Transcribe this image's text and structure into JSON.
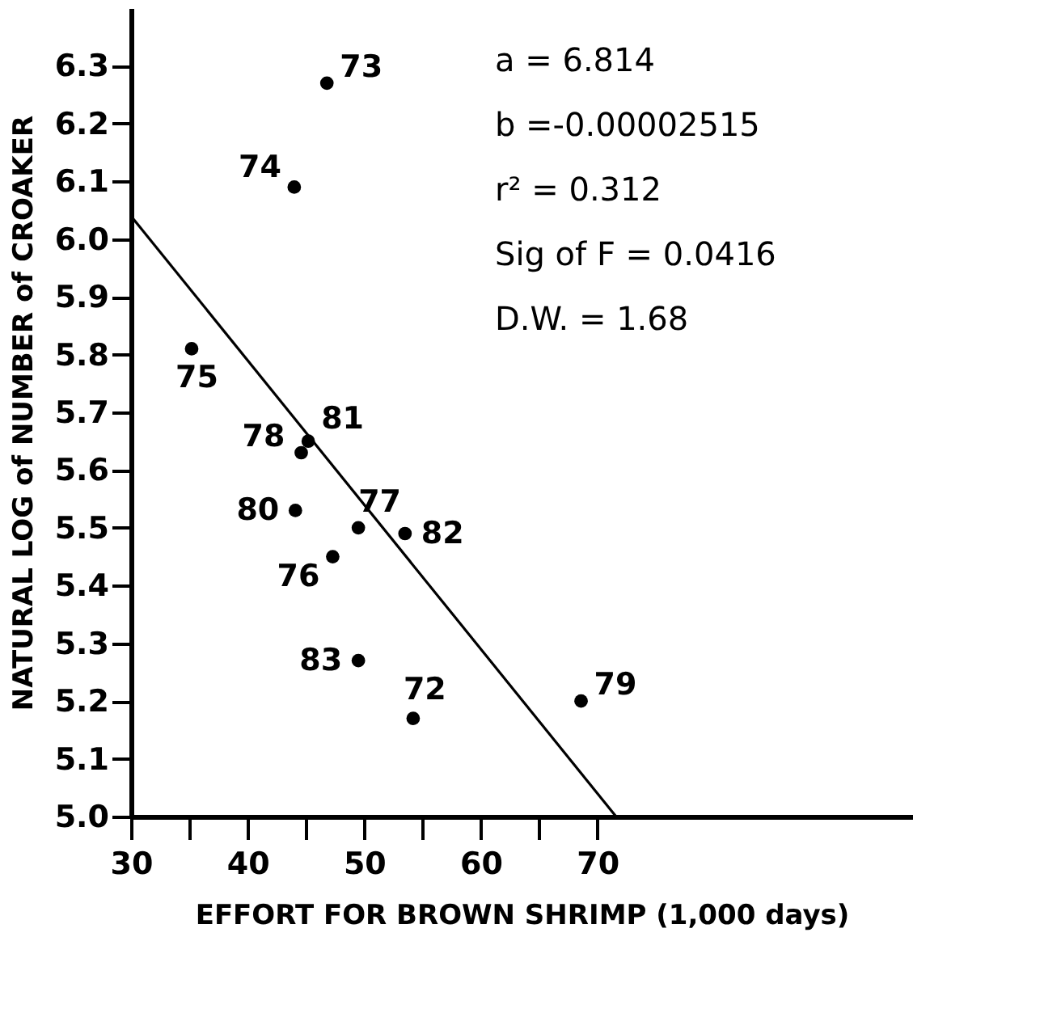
{
  "chart_data": {
    "type": "scatter",
    "xlabel": "EFFORT FOR BROWN SHRIMP (1,000 days)",
    "ylabel": "NATURAL LOG of NUMBER of CROAKER",
    "series": [
      {
        "color": "#000000",
        "x": [
          46.8,
          44.0,
          35.2,
          45.2,
          44.6,
          44.1,
          49.5,
          53.5,
          47.3,
          49.5,
          54.2,
          68.6
        ],
        "values": [
          6.27,
          6.09,
          5.81,
          5.65,
          5.63,
          5.53,
          5.5,
          5.49,
          5.45,
          5.27,
          5.17,
          5.2
        ]
      },
      {
        "type": "line",
        "color": "#000000",
        "marker": "none",
        "x": [
          30,
          71.6
        ],
        "values": [
          6.04,
          5.0
        ]
      }
    ],
    "annotations": [
      {
        "text": "73",
        "x": 46.8,
        "y": 6.27
      },
      {
        "text": "74",
        "x": 44.0,
        "y": 6.09
      },
      {
        "text": "75",
        "x": 35.2,
        "y": 5.81
      },
      {
        "text": "81",
        "x": 45.2,
        "y": 5.65
      },
      {
        "text": "78",
        "x": 44.6,
        "y": 5.63
      },
      {
        "text": "80",
        "x": 44.1,
        "y": 5.53
      },
      {
        "text": "77",
        "x": 49.5,
        "y": 5.5
      },
      {
        "text": "82",
        "x": 53.5,
        "y": 5.49
      },
      {
        "text": "76",
        "x": 47.3,
        "y": 5.45
      },
      {
        "text": "83",
        "x": 49.5,
        "y": 5.27
      },
      {
        "text": "72",
        "x": 54.2,
        "y": 5.17
      },
      {
        "text": "79",
        "x": 68.6,
        "y": 5.2
      },
      "a = 6.814",
      "b =-0.00002515",
      "r² = 0.312",
      "Sig of F = 0.0416",
      "D.W. = 1.68"
    ],
    "xlim": [
      30,
      97
    ],
    "ylim": [
      5.0,
      6.4
    ],
    "xticks": [
      30,
      {
        "value": 35,
        "label": null
      },
      40,
      {
        "value": 45,
        "label": null
      },
      50,
      {
        "value": 55,
        "label": null
      },
      60,
      {
        "value": 65,
        "label": null
      },
      70
    ],
    "yticks": [
      {
        "value": 5,
        "label": "5.0"
      },
      5.1,
      5.2,
      5.3,
      5.4,
      5.5,
      5.6,
      5.7,
      5.8,
      5.9,
      {
        "value": 6,
        "label": "6.0"
      },
      6.1,
      6.2,
      6.3
    ],
    "marker": "circle",
    "grid": false
  }
}
